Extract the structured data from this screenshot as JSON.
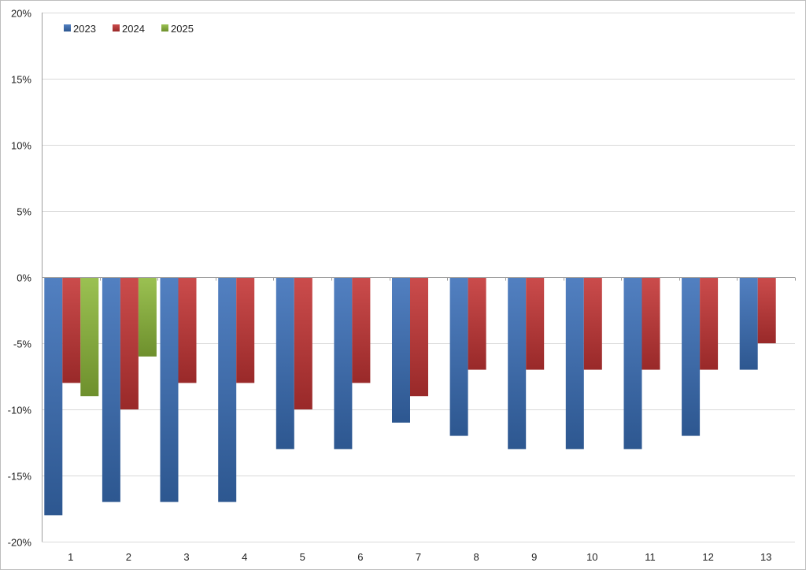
{
  "chart_data": {
    "type": "bar",
    "categories": [
      "1",
      "2",
      "3",
      "4",
      "5",
      "6",
      "7",
      "8",
      "9",
      "10",
      "11",
      "12",
      "13"
    ],
    "series": [
      {
        "name": "2023",
        "color": "#3a6fb8",
        "values": [
          -18,
          -17,
          -17,
          -17,
          -13,
          -13,
          -11,
          -12,
          -13,
          -13,
          -13,
          -12,
          -7
        ]
      },
      {
        "name": "2024",
        "color": "#c43434",
        "values": [
          -8,
          -10,
          -8,
          -8,
          -10,
          -8,
          -9,
          -7,
          -7,
          -7,
          -7,
          -7,
          -5
        ]
      },
      {
        "name": "2025",
        "color": "#8db83a",
        "values": [
          -9,
          -6,
          null,
          null,
          null,
          null,
          null,
          null,
          null,
          null,
          null,
          null,
          null
        ]
      }
    ],
    "ylim": [
      -20,
      20
    ],
    "yticks": [
      20,
      15,
      10,
      5,
      0,
      -5,
      -10,
      -15,
      -20
    ],
    "ytick_labels": [
      "20%",
      "15%",
      "10%",
      "5%",
      "0%",
      "-5%",
      "-10%",
      "-15%",
      "-20%"
    ],
    "grid": true,
    "legend_position": "top-left",
    "title": "",
    "xlabel": "",
    "ylabel": ""
  }
}
